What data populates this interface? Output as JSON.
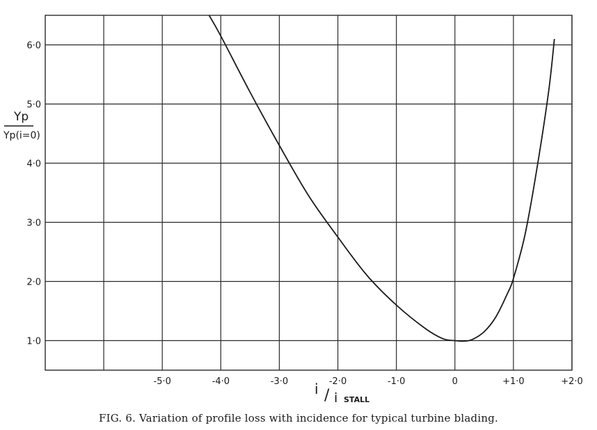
{
  "caption": "FIG. 6.   Variation of profile loss with incidence for typical turbine blading.",
  "chart_data": {
    "type": "line",
    "xlim": [
      -7.0,
      2.0
    ],
    "ylim": [
      0.5,
      6.5
    ],
    "x_grid": [
      -6.0,
      -5.0,
      -4.0,
      -3.0,
      -2.0,
      -1.0,
      0.0,
      1.0,
      2.0
    ],
    "y_grid": [
      1.0,
      2.0,
      3.0,
      4.0,
      5.0,
      6.0
    ],
    "x_tick_labels": [
      {
        "x": -5.0,
        "label": "-5·0"
      },
      {
        "x": -4.0,
        "label": "-4·0"
      },
      {
        "x": -3.0,
        "label": "-3·0"
      },
      {
        "x": -2.0,
        "label": "-2·0"
      },
      {
        "x": -1.0,
        "label": "-1·0"
      },
      {
        "x": 0.0,
        "label": "0"
      },
      {
        "x": 1.0,
        "label": "+1·0"
      },
      {
        "x": 2.0,
        "label": "+2·0"
      }
    ],
    "y_tick_labels": [
      {
        "y": 1.0,
        "label": "1·0"
      },
      {
        "y": 2.0,
        "label": "2·0"
      },
      {
        "y": 3.0,
        "label": "3·0"
      },
      {
        "y": 4.0,
        "label": "4·0"
      },
      {
        "y": 5.0,
        "label": "5·0"
      },
      {
        "y": 6.0,
        "label": "6·0"
      }
    ],
    "xlabel": {
      "main": "i",
      "denominator": "i",
      "subscript": "STALL"
    },
    "ylabel": {
      "numerator": "Yp",
      "denominator": "Yp(i=0)"
    },
    "grid": true,
    "series": [
      {
        "x": [
          -4.2,
          -4.0,
          -3.5,
          -3.0,
          -2.5,
          -2.0,
          -1.5,
          -1.0,
          -0.5,
          -0.2,
          0.0,
          0.15,
          0.3,
          0.5,
          0.7,
          0.9,
          1.0,
          1.2,
          1.4,
          1.6,
          1.7
        ],
        "y": [
          6.5,
          6.15,
          5.2,
          4.3,
          3.45,
          2.75,
          2.1,
          1.6,
          1.2,
          1.03,
          1.0,
          0.99,
          1.02,
          1.15,
          1.4,
          1.8,
          2.05,
          2.8,
          3.9,
          5.2,
          6.1
        ]
      }
    ],
    "colors": {
      "line": "#1a1a1a",
      "grid": "#2a2a2a",
      "background": "#ffffff"
    }
  }
}
